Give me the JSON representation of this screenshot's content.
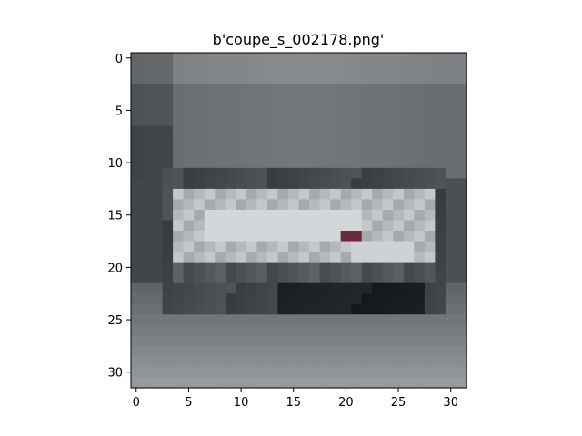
{
  "figure": {
    "title": "b'coupe_s_002178.png'"
  },
  "image": {
    "description_icon": "image-icon",
    "grid_width": 32,
    "grid_height": 32,
    "grayscale_levels_hint": "low-resolution car photo, gray tones"
  },
  "axes": {
    "x_ticks": [
      "0",
      "5",
      "10",
      "15",
      "20",
      "25",
      "30"
    ],
    "y_ticks": [
      "0",
      "5",
      "10",
      "15",
      "20",
      "25",
      "30"
    ],
    "x_tick_values": [
      0,
      5,
      10,
      15,
      20,
      25,
      30
    ],
    "y_tick_values": [
      0,
      5,
      10,
      15,
      20,
      25,
      30
    ],
    "xlim": [
      -0.5,
      31.5
    ],
    "ylim": [
      31.5,
      -0.5
    ]
  }
}
